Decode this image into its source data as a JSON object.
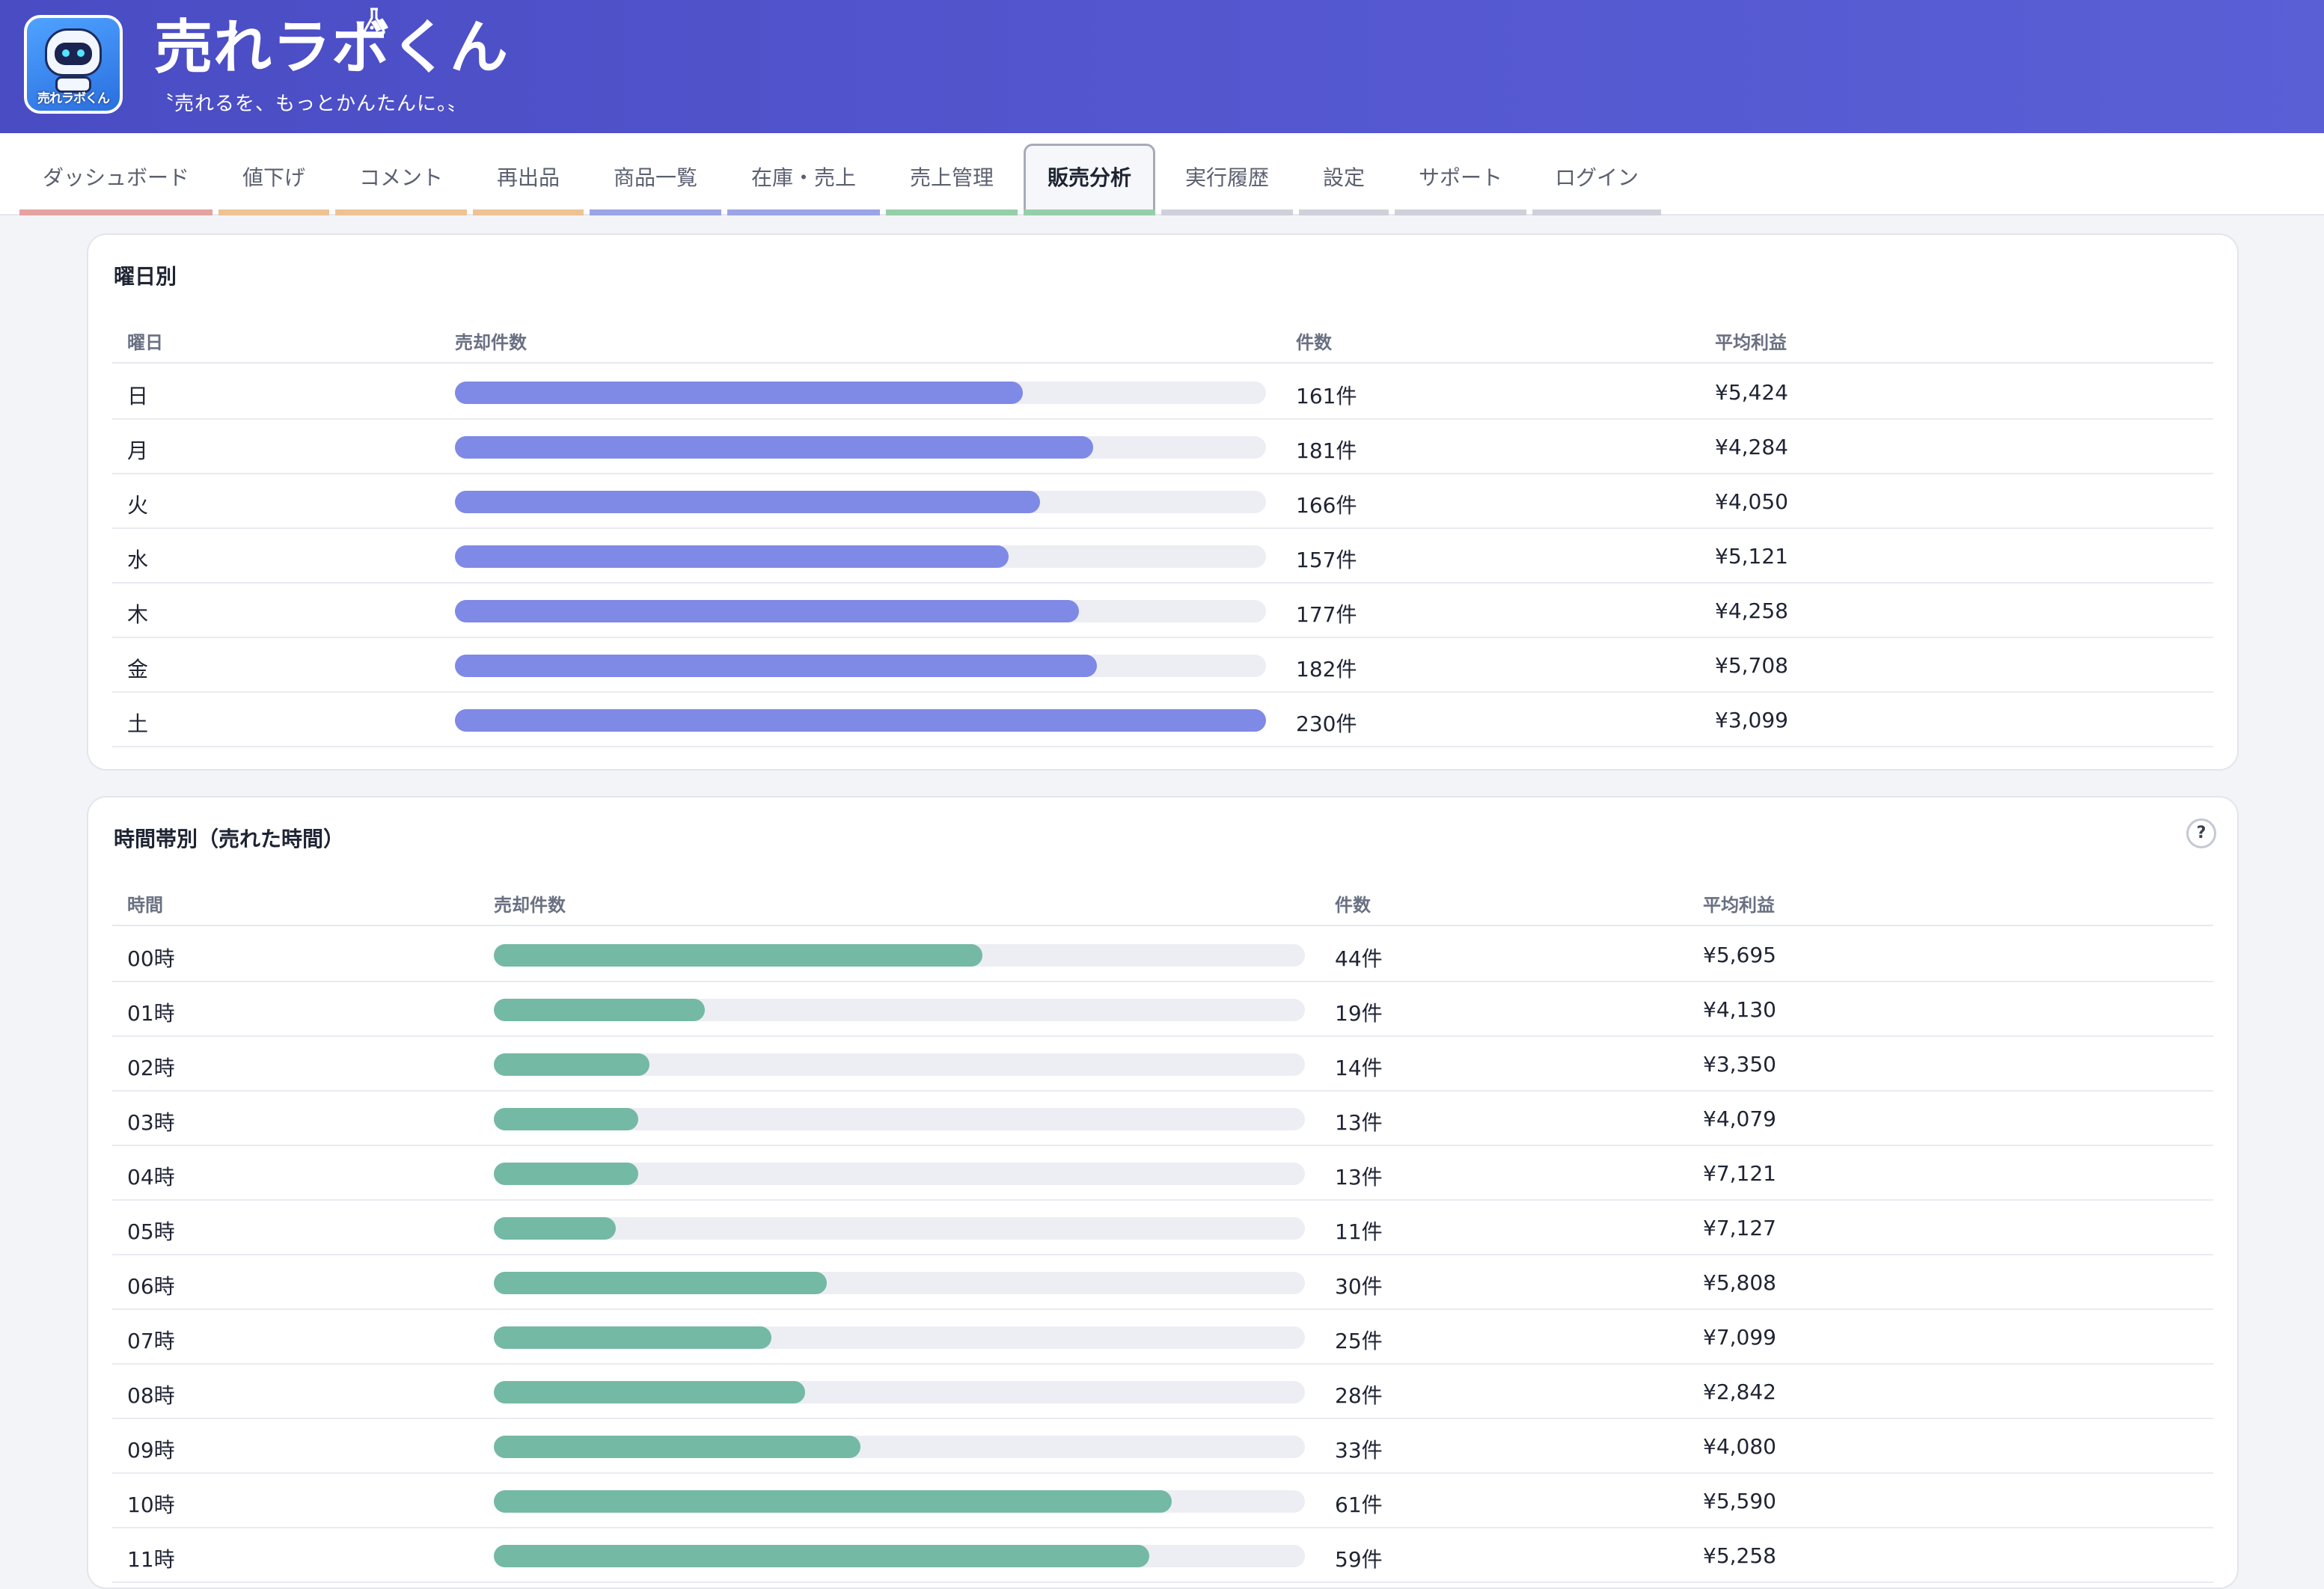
{
  "header": {
    "brand_title": "売れラボくん",
    "tagline": "〝売れるを、もっとかんたんに。〟",
    "logo_caption": "売れラボくん"
  },
  "nav": {
    "tabs": [
      {
        "label": "ダッシュボード",
        "color": "#e4a2a0",
        "active": false
      },
      {
        "label": "値下げ",
        "color": "#edc394",
        "active": false
      },
      {
        "label": "コメント",
        "color": "#edc394",
        "active": false
      },
      {
        "label": "再出品",
        "color": "#edc394",
        "active": false
      },
      {
        "label": "商品一覧",
        "color": "#9aa4e6",
        "active": false
      },
      {
        "label": "在庫・売上",
        "color": "#9aa4e6",
        "active": false
      },
      {
        "label": "売上管理",
        "color": "#95cfa9",
        "active": false
      },
      {
        "label": "販売分析",
        "color": "#95cfa9",
        "active": true
      },
      {
        "label": "実行履歴",
        "color": "#cfd1da",
        "active": false
      },
      {
        "label": "設定",
        "color": "#cfd1da",
        "active": false
      },
      {
        "label": "サポート",
        "color": "#cfd1da",
        "active": false
      },
      {
        "label": "ログイン",
        "color": "#cfd1da",
        "active": false
      }
    ]
  },
  "weekday": {
    "title": "曜日別",
    "columns": [
      "曜日",
      "売却件数",
      "件数",
      "平均利益"
    ],
    "max_count": 230,
    "bar_color": "#7f89e6",
    "rows": [
      {
        "label": "日",
        "count": 161,
        "count_text": "161件",
        "avg": "¥5,424"
      },
      {
        "label": "月",
        "count": 181,
        "count_text": "181件",
        "avg": "¥4,284"
      },
      {
        "label": "火",
        "count": 166,
        "count_text": "166件",
        "avg": "¥4,050"
      },
      {
        "label": "水",
        "count": 157,
        "count_text": "157件",
        "avg": "¥5,121"
      },
      {
        "label": "木",
        "count": 177,
        "count_text": "177件",
        "avg": "¥4,258"
      },
      {
        "label": "金",
        "count": 182,
        "count_text": "182件",
        "avg": "¥5,708"
      },
      {
        "label": "土",
        "count": 230,
        "count_text": "230件",
        "avg": "¥3,099"
      }
    ]
  },
  "hourly": {
    "title": "時間帯別（売れた時間）",
    "help_icon": "question-icon",
    "help_glyph": "?",
    "columns": [
      "時間",
      "売却件数",
      "件数",
      "平均利益"
    ],
    "max_count": 73,
    "bar_color": "#74b9a4",
    "rows": [
      {
        "label": "00時",
        "count": 44,
        "count_text": "44件",
        "avg": "¥5,695"
      },
      {
        "label": "01時",
        "count": 19,
        "count_text": "19件",
        "avg": "¥4,130"
      },
      {
        "label": "02時",
        "count": 14,
        "count_text": "14件",
        "avg": "¥3,350"
      },
      {
        "label": "03時",
        "count": 13,
        "count_text": "13件",
        "avg": "¥4,079"
      },
      {
        "label": "04時",
        "count": 13,
        "count_text": "13件",
        "avg": "¥7,121"
      },
      {
        "label": "05時",
        "count": 11,
        "count_text": "11件",
        "avg": "¥7,127"
      },
      {
        "label": "06時",
        "count": 30,
        "count_text": "30件",
        "avg": "¥5,808"
      },
      {
        "label": "07時",
        "count": 25,
        "count_text": "25件",
        "avg": "¥7,099"
      },
      {
        "label": "08時",
        "count": 28,
        "count_text": "28件",
        "avg": "¥2,842"
      },
      {
        "label": "09時",
        "count": 33,
        "count_text": "33件",
        "avg": "¥4,080"
      },
      {
        "label": "10時",
        "count": 61,
        "count_text": "61件",
        "avg": "¥5,590"
      },
      {
        "label": "11時",
        "count": 59,
        "count_text": "59件",
        "avg": "¥5,258"
      }
    ]
  }
}
